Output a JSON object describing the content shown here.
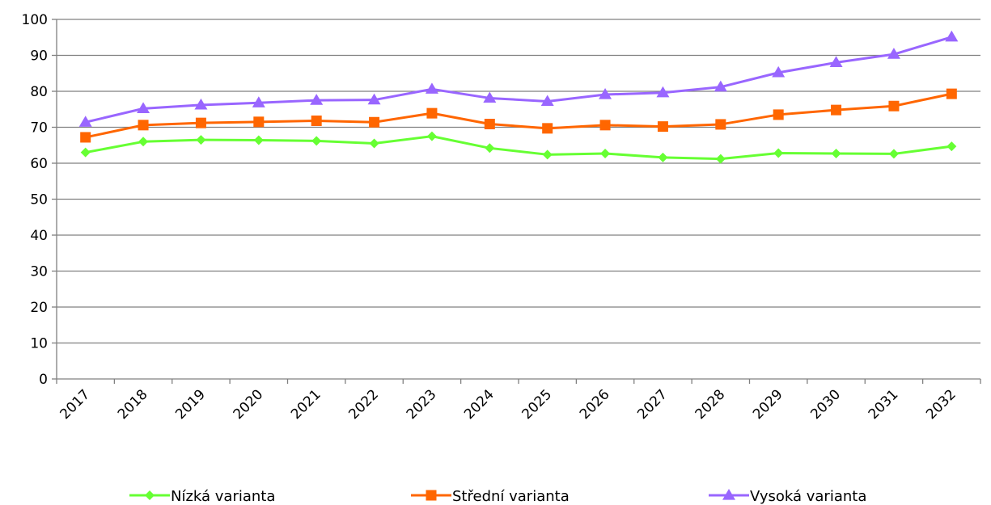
{
  "chart_data": {
    "type": "line",
    "categories": [
      "2017",
      "2018",
      "2019",
      "2020",
      "2021",
      "2022",
      "2023",
      "2024",
      "2025",
      "2026",
      "2027",
      "2028",
      "2029",
      "2030",
      "2031",
      "2032"
    ],
    "series": [
      {
        "name": "Nízká varianta",
        "color": "#66ff33",
        "marker": "diamond",
        "values": [
          63.0,
          66.0,
          66.5,
          66.4,
          66.2,
          65.5,
          67.5,
          64.2,
          62.4,
          62.7,
          61.6,
          61.2,
          62.8,
          62.7,
          62.6,
          64.7
        ]
      },
      {
        "name": "Střední varianta",
        "color": "#ff6600",
        "marker": "square",
        "values": [
          67.2,
          70.6,
          71.2,
          71.5,
          71.8,
          71.4,
          73.9,
          70.9,
          69.7,
          70.6,
          70.2,
          70.8,
          73.5,
          74.8,
          75.9,
          79.3
        ]
      },
      {
        "name": "Vysoká varianta",
        "color": "#9966ff",
        "marker": "triangle",
        "values": [
          71.4,
          75.2,
          76.2,
          76.8,
          77.5,
          77.6,
          80.6,
          78.1,
          77.2,
          79.1,
          79.6,
          81.2,
          85.2,
          88.0,
          90.3,
          95.1
        ]
      }
    ],
    "y_ticks": [
      "0",
      "10",
      "20",
      "30",
      "40",
      "50",
      "60",
      "70",
      "80",
      "90",
      "100"
    ],
    "ylim": [
      0,
      100
    ],
    "grid": "horizontal",
    "legend_position": "bottom"
  }
}
